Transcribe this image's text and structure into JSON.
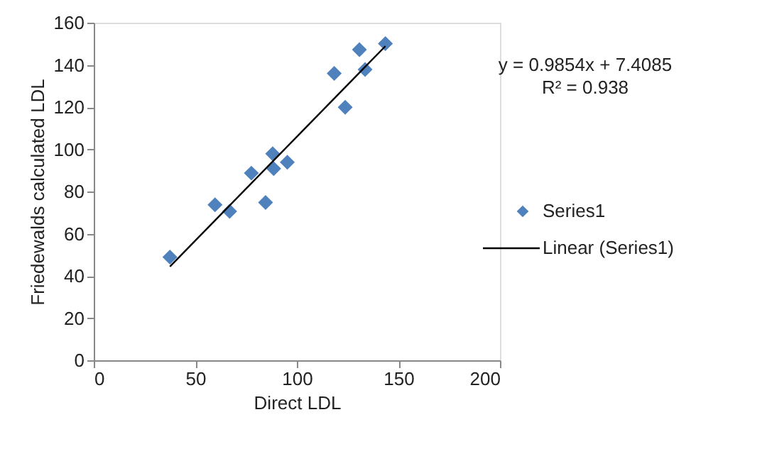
{
  "chart_data": {
    "type": "scatter",
    "xlabel": "Direct LDL",
    "ylabel": "Friedewalds calculated LDL",
    "xlim": [
      0,
      200
    ],
    "xticks": [
      0,
      50,
      100,
      150,
      200
    ],
    "ylim": [
      0,
      160
    ],
    "yticks": [
      0,
      20,
      40,
      60,
      80,
      100,
      120,
      140,
      160
    ],
    "grid": false,
    "legend": "right",
    "series": [
      {
        "name": "Series1",
        "type": "scatter",
        "marker": "diamond",
        "color": "#4f81bd",
        "x": [
          37.5,
          59.7,
          66.9,
          77.6,
          84.6,
          88.1,
          88.6,
          95.3,
          118.4,
          123.8,
          130.8,
          133.6,
          143.6
        ],
        "values": [
          48.9,
          73.7,
          70.6,
          88.7,
          74.8,
          97.9,
          90.8,
          93.9,
          136,
          119.9,
          147.2,
          137.8,
          150.1
        ]
      },
      {
        "name": "Linear (Series1)",
        "type": "line",
        "color": "#000000",
        "line_style": "solid",
        "marker": "none",
        "x": [
          37.5,
          143.6
        ],
        "values": [
          44.4,
          148.9
        ]
      }
    ],
    "annotations": [
      "y = 0.9854x + 7.4085",
      "R² = 0.938"
    ]
  }
}
